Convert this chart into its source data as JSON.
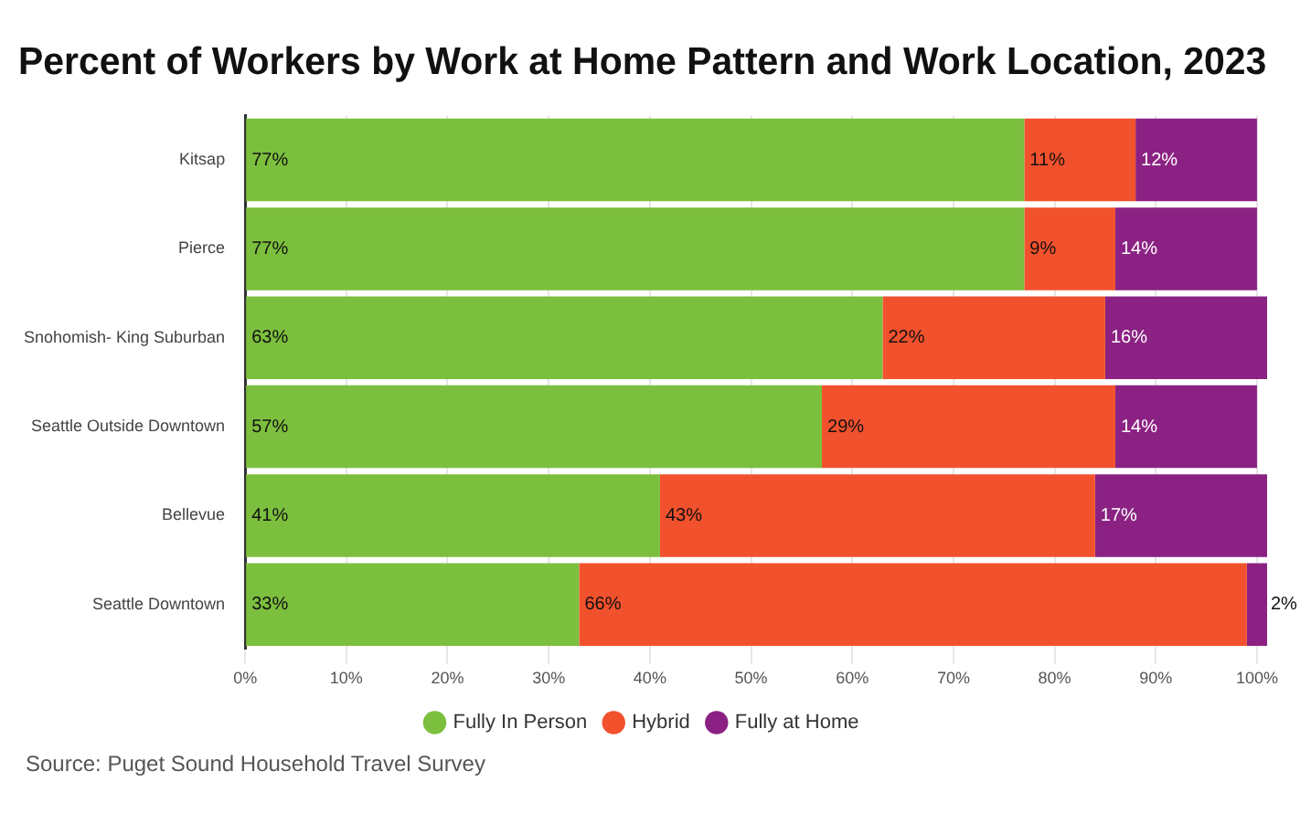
{
  "chart_data": {
    "type": "bar",
    "orientation": "horizontal",
    "stacked": true,
    "title": "Percent of Workers by Work at Home Pattern and Work Location, 2023",
    "categories": [
      "Kitsap",
      "Pierce",
      "Snohomish- King Suburban",
      "Seattle Outside Downtown",
      "Bellevue",
      "Seattle Downtown"
    ],
    "series": [
      {
        "name": "Fully In Person",
        "color": "#7cbf3e",
        "values": [
          77,
          77,
          63,
          57,
          41,
          33
        ],
        "value_labels": [
          "77%",
          "77%",
          "63%",
          "57%",
          "41%",
          "33%"
        ]
      },
      {
        "name": "Hybrid",
        "color": "#f2512d",
        "values": [
          11,
          9,
          22,
          29,
          43,
          66
        ],
        "value_labels": [
          "11%",
          "9%",
          "22%",
          "29%",
          "43%",
          "66%"
        ]
      },
      {
        "name": "Fully at Home",
        "color": "#8b2283",
        "values": [
          12,
          14,
          16,
          14,
          17,
          2
        ],
        "value_labels": [
          "12%",
          "14%",
          "16%",
          "14%",
          "17%",
          "2%"
        ]
      }
    ],
    "xlim": [
      0,
      101
    ],
    "xticks": [
      {
        "value": 0,
        "label": "0%"
      },
      {
        "value": 10,
        "label": "10%"
      },
      {
        "value": 20,
        "label": "20%"
      },
      {
        "value": 30,
        "label": "30%"
      },
      {
        "value": 40,
        "label": "40%"
      },
      {
        "value": 50,
        "label": "50%"
      },
      {
        "value": 60,
        "label": "60%"
      },
      {
        "value": 70,
        "label": "70%"
      },
      {
        "value": 80,
        "label": "80%"
      },
      {
        "value": 90,
        "label": "90%"
      },
      {
        "value": 100,
        "label": "100%"
      }
    ],
    "grid": "x",
    "legend": "bottom",
    "annotations": [
      "Source: Puget Sound Household Travel Survey"
    ]
  }
}
